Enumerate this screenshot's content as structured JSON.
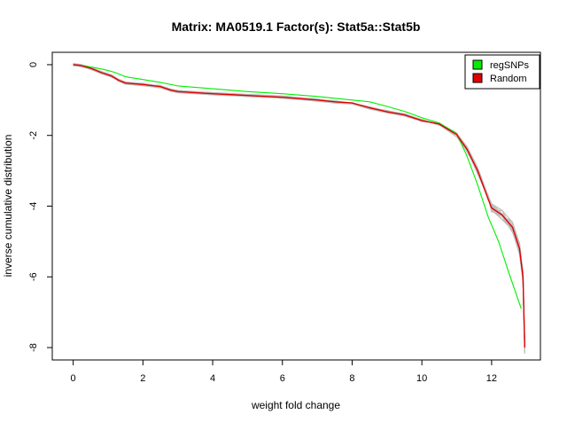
{
  "chart_data": {
    "type": "line",
    "title": "Matrix: MA0519.1 Factor(s): Stat5a::Stat5b",
    "xlabel": "weight fold change",
    "ylabel": "inverse cumulative distribution",
    "xlim": [
      -0.6,
      13.4
    ],
    "ylim": [
      -8.35,
      0.35
    ],
    "xticks": [
      0,
      2,
      4,
      6,
      8,
      10,
      12
    ],
    "yticks": [
      0,
      -2,
      -4,
      -6,
      -8
    ],
    "grid": false,
    "legend": {
      "position": "top-right",
      "entries": [
        {
          "label": "regSNPs",
          "color": "#00ee00"
        },
        {
          "label": "Random",
          "color": "#e00000"
        }
      ]
    },
    "series": [
      {
        "name": "regSNPs",
        "color": "#00ee00",
        "x": [
          0,
          0.3,
          0.6,
          0.9,
          1.2,
          1.5,
          2.0,
          2.5,
          3.0,
          4.0,
          5.0,
          6.0,
          7.0,
          8.0,
          8.5,
          9.0,
          9.5,
          10.0,
          10.5,
          11.0,
          11.3,
          11.6,
          11.9,
          12.2,
          12.5,
          12.85
        ],
        "y": [
          0,
          -0.03,
          -0.08,
          -0.14,
          -0.22,
          -0.34,
          -0.42,
          -0.5,
          -0.6,
          -0.68,
          -0.76,
          -0.82,
          -0.9,
          -1.0,
          -1.05,
          -1.18,
          -1.32,
          -1.5,
          -1.65,
          -1.95,
          -2.6,
          -3.4,
          -4.3,
          -5.0,
          -5.9,
          -6.9
        ]
      },
      {
        "name": "Random",
        "color": "#e00000",
        "x": [
          0,
          0.2,
          0.5,
          0.8,
          1.1,
          1.3,
          1.5,
          2.0,
          2.5,
          2.8,
          3.0,
          4.0,
          5.0,
          6.0,
          7.0,
          7.5,
          8.0,
          8.5,
          9.0,
          9.5,
          10.0,
          10.5,
          11.0,
          11.3,
          11.6,
          11.9,
          12.0,
          12.3,
          12.6,
          12.8,
          12.9,
          12.95
        ],
        "y": [
          0,
          -0.02,
          -0.1,
          -0.22,
          -0.32,
          -0.44,
          -0.52,
          -0.56,
          -0.62,
          -0.72,
          -0.76,
          -0.82,
          -0.87,
          -0.92,
          -1.0,
          -1.05,
          -1.08,
          -1.22,
          -1.33,
          -1.42,
          -1.58,
          -1.68,
          -1.98,
          -2.4,
          -3.0,
          -3.8,
          -4.05,
          -4.25,
          -4.6,
          -5.2,
          -6.0,
          -8.0
        ]
      }
    ]
  }
}
